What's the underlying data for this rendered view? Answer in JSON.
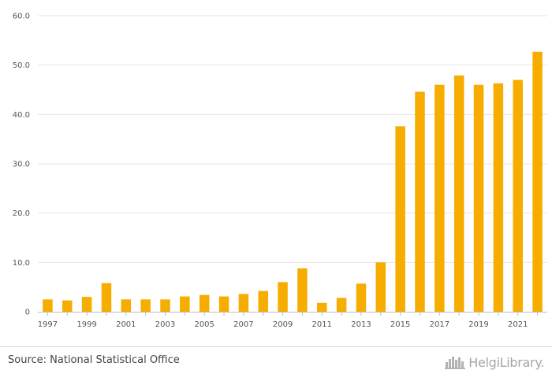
{
  "chart_data": {
    "type": "bar",
    "categories": [
      "1997",
      "1998",
      "1999",
      "2000",
      "2001",
      "2002",
      "2003",
      "2004",
      "2005",
      "2006",
      "2007",
      "2008",
      "2009",
      "2010",
      "2011",
      "2012",
      "2013",
      "2014",
      "2015",
      "2016",
      "2017",
      "2018",
      "2019",
      "2020",
      "2021",
      "2022"
    ],
    "values": [
      2.5,
      2.3,
      3.0,
      5.8,
      2.5,
      2.5,
      2.5,
      3.1,
      3.4,
      3.1,
      3.6,
      4.2,
      6.0,
      8.8,
      1.8,
      2.8,
      5.7,
      10.0,
      37.6,
      44.6,
      46.0,
      47.9,
      46.0,
      46.3,
      47.0,
      52.7
    ],
    "x_tick_labels": [
      "1997",
      "1999",
      "2001",
      "2003",
      "2005",
      "2007",
      "2009",
      "2011",
      "2013",
      "2015",
      "2017",
      "2019",
      "2021"
    ],
    "y_tick_labels": [
      "0",
      "10.0",
      "20.0",
      "30.0",
      "40.0",
      "50.0",
      "60.0"
    ],
    "ylim": [
      0,
      60
    ],
    "title": "",
    "xlabel": "",
    "ylabel": "",
    "grid": true,
    "bar_color": "#f7ad00"
  },
  "footer": {
    "source": "Source: National Statistical Office",
    "logo_text": "HelgiLibrary.",
    "logo_icon": "city-skyline-icon"
  }
}
